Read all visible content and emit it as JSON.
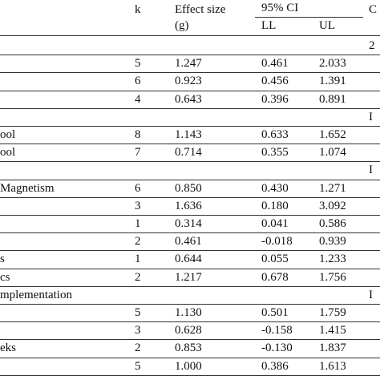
{
  "header": {
    "k": "k",
    "effect_size": "Effect size",
    "effect_unit": "(g)",
    "ci": "95% CI",
    "ll": "LL",
    "ul": "UL",
    "last": "C"
  },
  "rows": [
    [
      null,
      null,
      null,
      null,
      null,
      "2"
    ],
    [
      null,
      "5",
      "1.247",
      "0.461",
      "2.033",
      null
    ],
    [
      null,
      "6",
      "0.923",
      "0.456",
      "1.391",
      null
    ],
    [
      null,
      "4",
      "0.643",
      "0.396",
      "0.891",
      null
    ],
    [
      null,
      null,
      null,
      null,
      null,
      "I"
    ],
    [
      "ool",
      "8",
      "1.143",
      "0.633",
      "1.652",
      null
    ],
    [
      "ool",
      "7",
      "0.714",
      "0.355",
      "1.074",
      null
    ],
    [
      null,
      null,
      null,
      null,
      null,
      "I"
    ],
    [
      "Magnetism",
      "6",
      "0.850",
      "0.430",
      "1.271",
      null
    ],
    [
      null,
      "3",
      "1.636",
      "0.180",
      "3.092",
      null
    ],
    [
      null,
      "1",
      "0.314",
      "0.041",
      "0.586",
      null
    ],
    [
      null,
      "2",
      "0.461",
      "-0.018",
      "0.939",
      null
    ],
    [
      "s",
      "1",
      "0.644",
      "0.055",
      "1.233",
      null
    ],
    [
      "cs",
      "2",
      "1.217",
      "0.678",
      "1.756",
      null
    ],
    [
      "mplementation",
      null,
      null,
      null,
      null,
      "I"
    ],
    [
      null,
      "5",
      "1.130",
      "0.501",
      "1.759",
      null
    ],
    [
      null,
      "3",
      "0.628",
      "-0.158",
      "1.415",
      null
    ],
    [
      "eks",
      "2",
      "0.853",
      "-0.130",
      "1.837",
      null
    ],
    [
      null,
      "5",
      "1.000",
      "0.386",
      "1.613",
      null
    ]
  ]
}
